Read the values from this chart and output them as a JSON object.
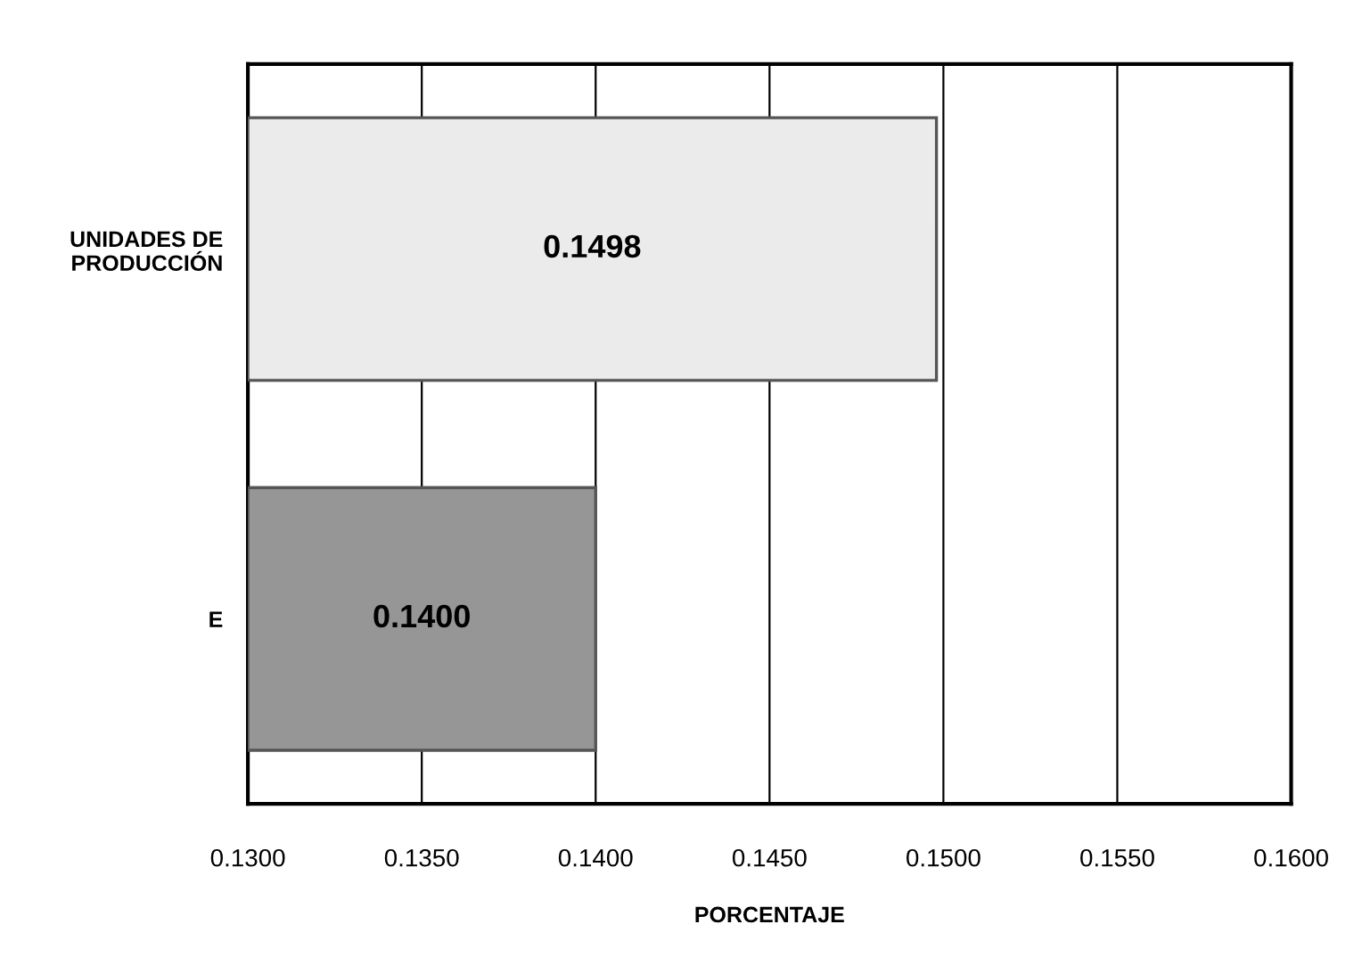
{
  "chart_data": {
    "type": "bar",
    "orientation": "horizontal",
    "xlabel": "PORCENTAJE",
    "categories": [
      "UNIDADES DE\nPRODUCCIÓN",
      "E"
    ],
    "values": [
      0.1498,
      0.14
    ],
    "colors": [
      "#ebebeb",
      "#969696"
    ],
    "value_labels": [
      "0.1498",
      "0.1400"
    ],
    "xlim": [
      0.13,
      0.16
    ],
    "xticks": [
      {
        "value": 0.13,
        "label": "0.1300"
      },
      {
        "value": 0.135,
        "label": "0.1350"
      },
      {
        "value": 0.14,
        "label": "0.1400"
      },
      {
        "value": 0.145,
        "label": "0.1450"
      },
      {
        "value": 0.15,
        "label": "0.1500"
      },
      {
        "value": 0.155,
        "label": "0.1550"
      },
      {
        "value": 0.16,
        "label": "0.1600"
      }
    ],
    "grid": "x",
    "legend": false
  }
}
